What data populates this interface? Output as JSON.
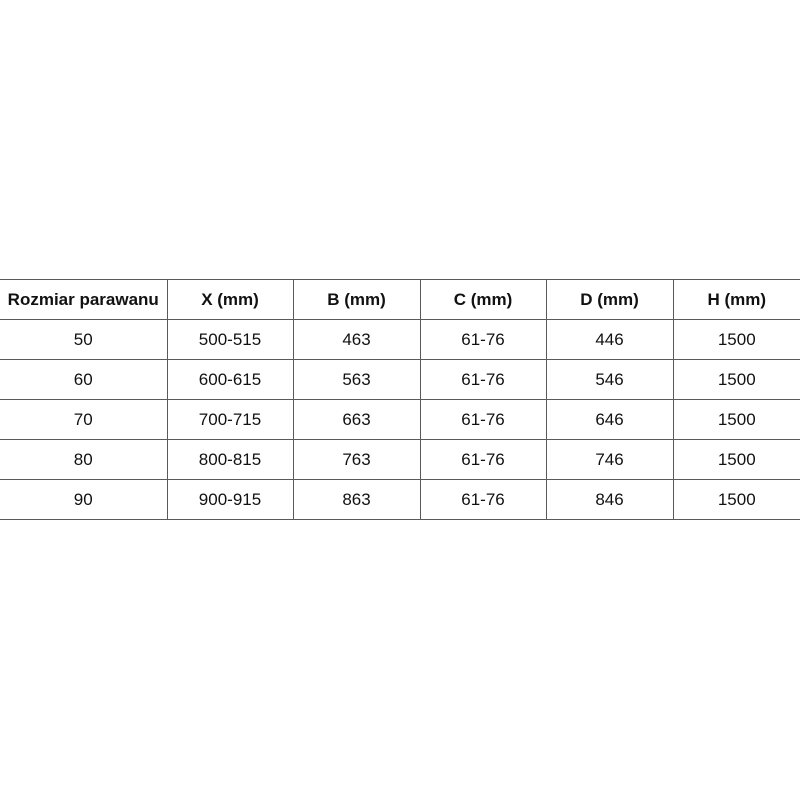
{
  "table": {
    "headers": [
      "Rozmiar parawanu",
      "X (mm)",
      "B (mm)",
      "C (mm)",
      "D (mm)",
      "H (mm)"
    ],
    "rows": [
      [
        "50",
        "500-515",
        "463",
        "61-76",
        "446",
        "1500"
      ],
      [
        "60",
        "600-615",
        "563",
        "61-76",
        "546",
        "1500"
      ],
      [
        "70",
        "700-715",
        "663",
        "61-76",
        "646",
        "1500"
      ],
      [
        "80",
        "800-815",
        "763",
        "61-76",
        "746",
        "1500"
      ],
      [
        "90",
        "900-915",
        "863",
        "61-76",
        "846",
        "1500"
      ]
    ]
  }
}
